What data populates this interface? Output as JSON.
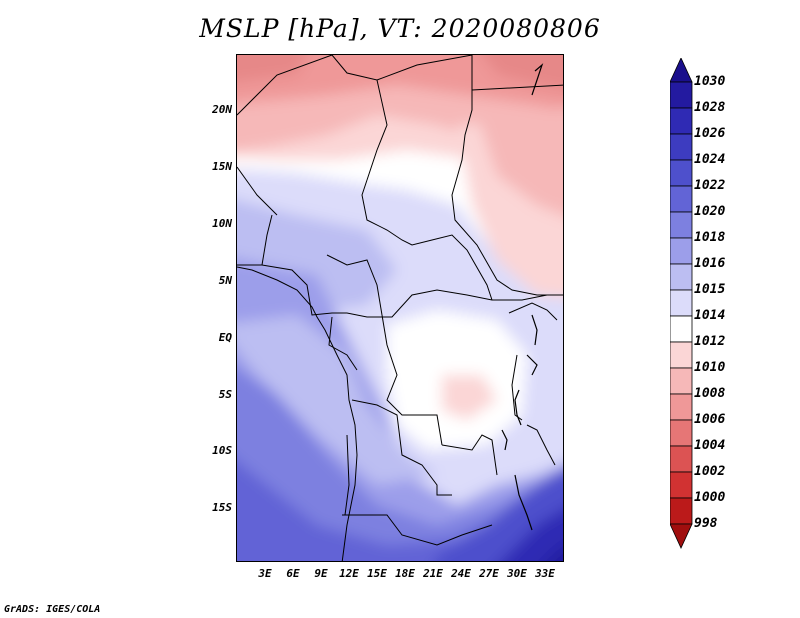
{
  "title": "MSLP [hPa], VT: 2020080806",
  "footer": "GrADS: IGES/COLA",
  "map": {
    "lat_labels": [
      "20N",
      "15N",
      "10N",
      "5N",
      "EQ",
      "5S",
      "10S",
      "15S"
    ],
    "lon_labels": [
      "3E",
      "6E",
      "9E",
      "12E",
      "15E",
      "18E",
      "21E",
      "24E",
      "27E",
      "30E",
      "33E"
    ]
  },
  "colorbar": {
    "levels": [
      "1030",
      "1028",
      "1026",
      "1024",
      "1022",
      "1020",
      "1018",
      "1016",
      "1015",
      "1014",
      "1012",
      "1010",
      "1008",
      "1006",
      "1004",
      "1002",
      "1000",
      "998"
    ],
    "colors": [
      "#1a0f8c",
      "#231aa0",
      "#2f2ab4",
      "#3d3cc0",
      "#4e50cc",
      "#6264d6",
      "#7d80e0",
      "#9c9eea",
      "#bcbef2",
      "#dcdcfa",
      "#ffffff",
      "#fbd6d6",
      "#f6b8b8",
      "#ef9898",
      "#e67676",
      "#dc5353",
      "#d13232",
      "#bb1a1a",
      "#a00e0e"
    ]
  }
}
